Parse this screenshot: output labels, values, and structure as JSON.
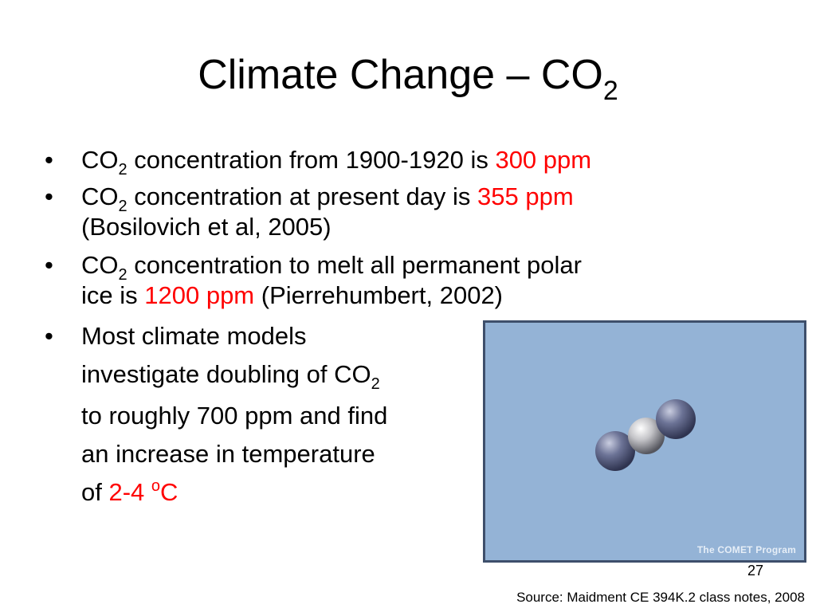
{
  "slide": {
    "title": {
      "text": "Climate Change – CO",
      "subscript": "2"
    },
    "bullets": [
      {
        "marker": "•",
        "lead": "CO",
        "lead_sub": "2",
        "text": " concentration from 1900-1920 is ",
        "highlight": "300 ppm"
      },
      {
        "marker": "•",
        "lead": "CO",
        "lead_sub": "2",
        "text": " concentration at present day is ",
        "highlight": "355 ppm",
        "line2": "(Bosilovich et al, 2005)"
      },
      {
        "marker": "•",
        "lead": "CO",
        "lead_sub": "2",
        "text": " concentration to melt all permanent polar",
        "line2_pre": "ice is ",
        "highlight": "1200 ppm",
        "line2_post": " (Pierrehumbert, 2002)"
      },
      {
        "marker": "•",
        "lines": [
          "Most climate models",
          "investigate doubling of CO",
          "to roughly 700 ppm and find",
          "an increase in temperature",
          "of "
        ],
        "sub": "2",
        "highlight": "2-4 ",
        "sup": "o",
        "unit": "C"
      }
    ],
    "image": {
      "credit": "The COMET Program",
      "molecule": "co2-molecule-icon"
    },
    "page_number": "27",
    "source": "Source: Maidment CE 394K.2 class notes, 2008",
    "colors": {
      "highlight": "#ff0000",
      "image_bg": "#94b3d6",
      "image_border": "#3e4f6b"
    }
  }
}
